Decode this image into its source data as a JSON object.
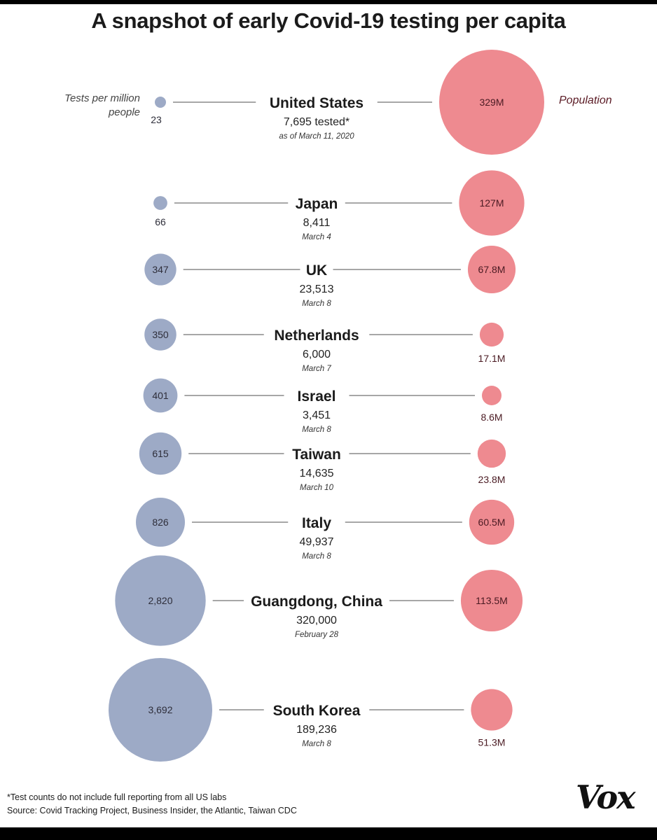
{
  "chart_data": {
    "type": "bubble",
    "title": "A snapshot of early Covid-19 testing per capita",
    "left_label": "Tests per million people",
    "right_label": "Population",
    "colors": {
      "tests": "#9daac6",
      "population": "#ee8a90",
      "pop_text": "#4a1a22",
      "line": "#8a8a8a"
    },
    "rows": [
      {
        "country": "United States",
        "tested": "7,695 tested*",
        "date": "as of March 11, 2020",
        "tests_per_million": 23,
        "tests_label": "23",
        "population_millions": 329,
        "population_label": "329M"
      },
      {
        "country": "Japan",
        "tested": "8,411",
        "date": "March 4",
        "tests_per_million": 66,
        "tests_label": "66",
        "population_millions": 127,
        "population_label": "127M"
      },
      {
        "country": "UK",
        "tested": "23,513",
        "date": "March 8",
        "tests_per_million": 347,
        "tests_label": "347",
        "population_millions": 67.8,
        "population_label": "67.8M"
      },
      {
        "country": "Netherlands",
        "tested": "6,000",
        "date": "March 7",
        "tests_per_million": 350,
        "tests_label": "350",
        "population_millions": 17.1,
        "population_label": "17.1M"
      },
      {
        "country": "Israel",
        "tested": "3,451",
        "date": "March 8",
        "tests_per_million": 401,
        "tests_label": "401",
        "population_millions": 8.6,
        "population_label": "8.6M"
      },
      {
        "country": "Taiwan",
        "tested": "14,635",
        "date": "March 10",
        "tests_per_million": 615,
        "tests_label": "615",
        "population_millions": 23.8,
        "population_label": "23.8M"
      },
      {
        "country": "Italy",
        "tested": "49,937",
        "date": "March 8",
        "tests_per_million": 826,
        "tests_label": "826",
        "population_millions": 60.5,
        "population_label": "60.5M"
      },
      {
        "country": "Guangdong, China",
        "tested": "320,000",
        "date": "February 28",
        "tests_per_million": 2820,
        "tests_label": "2,820",
        "population_millions": 113.5,
        "population_label": "113.5M"
      },
      {
        "country": "South Korea",
        "tested": "189,236",
        "date": "March 8",
        "tests_per_million": 3692,
        "tests_label": "3,692",
        "population_millions": 51.3,
        "population_label": "51.3M"
      }
    ]
  },
  "footnote": {
    "note": "*Test counts do not include full reporting from all US labs",
    "source": "Source: Covid Tracking Project, Business Insider, the Atlantic, Taiwan CDC"
  },
  "brand": {
    "logo": "Vox"
  }
}
